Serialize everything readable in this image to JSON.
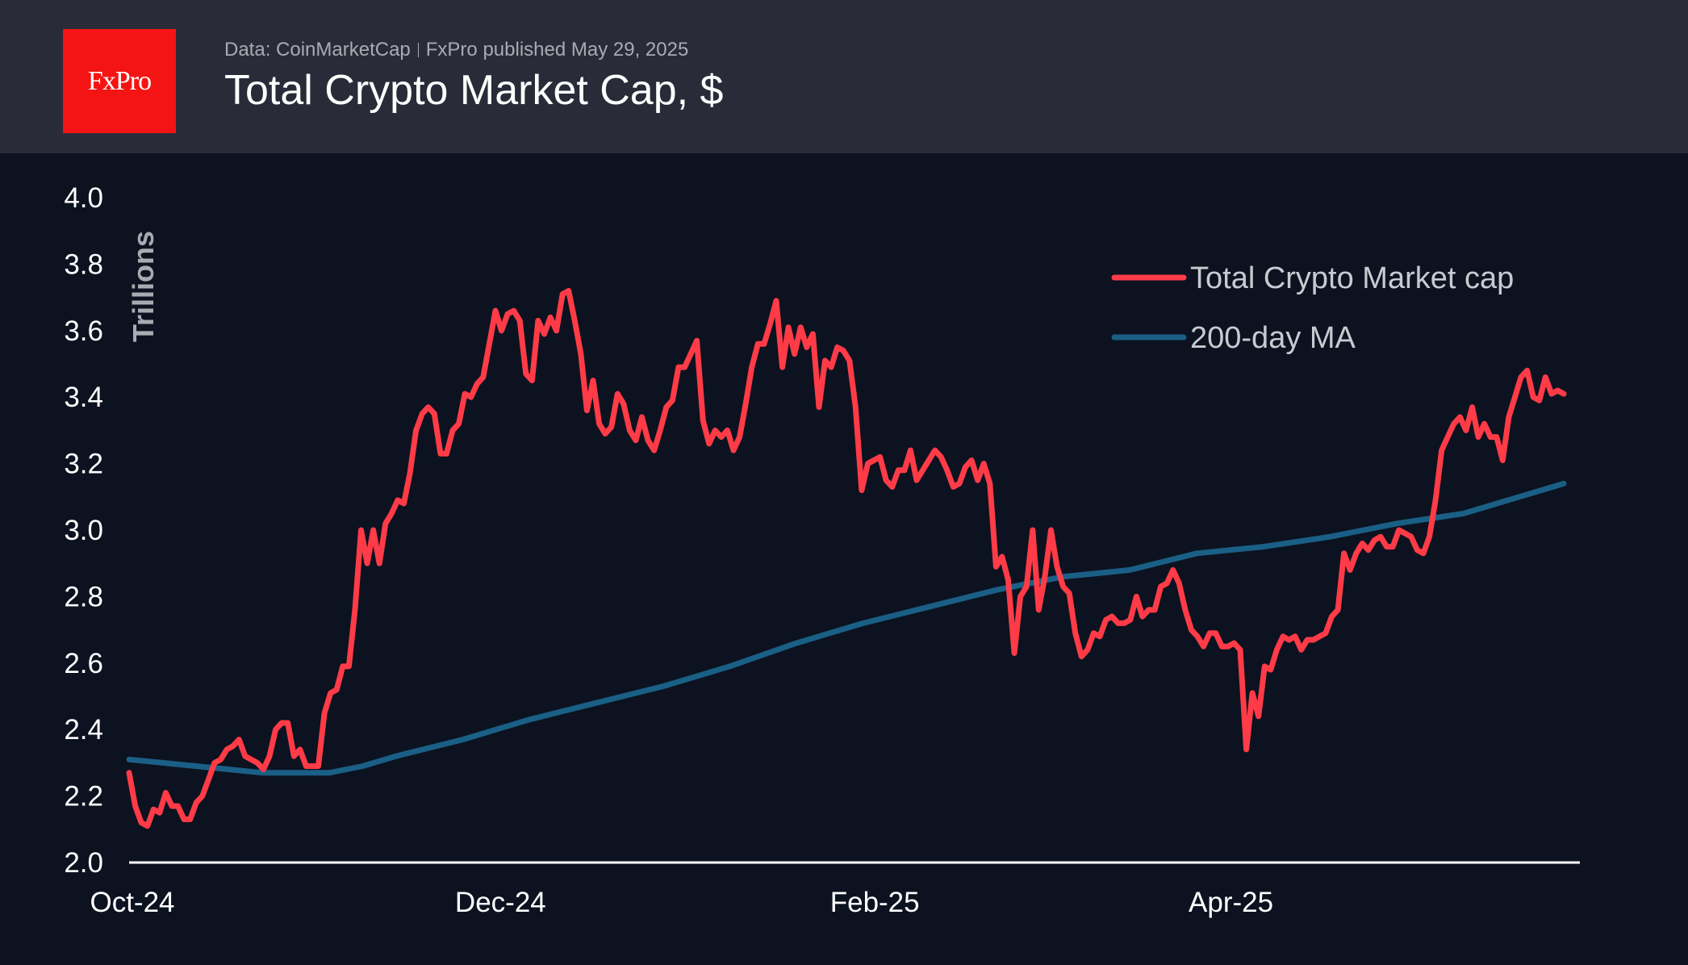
{
  "header": {
    "logo_text": "FxPro",
    "source": "Data: CoinMarketCap",
    "publisher": "FxPro published May 29, 2025",
    "title": "Total Crypto Market Cap, $"
  },
  "colors": {
    "header_bg": "#292c38",
    "plot_bg": "#0c1220",
    "logo": "#f51414",
    "market_cap": "#ff3b47",
    "ma": "#1a5f85"
  },
  "chart_data": {
    "type": "line",
    "title": "Total Crypto Market Cap, $",
    "ylabel": "Trillions",
    "xlabel": "",
    "ylim": [
      2.0,
      4.0
    ],
    "x_range": [
      "2024-10-01",
      "2025-05-28"
    ],
    "yticks": [
      "2.0",
      "2.2",
      "2.4",
      "2.6",
      "2.8",
      "3.0",
      "3.2",
      "3.4",
      "3.6",
      "3.8",
      "4.0"
    ],
    "xticks": [
      {
        "label": "Oct-24",
        "date": "2024-10-01"
      },
      {
        "label": "Dec-24",
        "date": "2024-12-01"
      },
      {
        "label": "Feb-25",
        "date": "2025-02-01"
      },
      {
        "label": "Apr-25",
        "date": "2025-04-01"
      }
    ],
    "grid": false,
    "legend_position": "top-right",
    "series": [
      {
        "name": "Total Crypto Market cap",
        "color": "#ff3b47",
        "values": [
          2.27,
          2.17,
          2.12,
          2.11,
          2.16,
          2.15,
          2.21,
          2.17,
          2.17,
          2.13,
          2.13,
          2.18,
          2.2,
          2.25,
          2.3,
          2.31,
          2.34,
          2.35,
          2.37,
          2.32,
          2.31,
          2.3,
          2.28,
          2.32,
          2.4,
          2.42,
          2.42,
          2.32,
          2.34,
          2.29,
          2.29,
          2.29,
          2.45,
          2.51,
          2.52,
          2.59,
          2.59,
          2.76,
          3.0,
          2.9,
          3.0,
          2.9,
          3.02,
          3.05,
          3.09,
          3.08,
          3.17,
          3.3,
          3.35,
          3.37,
          3.35,
          3.23,
          3.23,
          3.3,
          3.32,
          3.41,
          3.4,
          3.44,
          3.46,
          3.56,
          3.66,
          3.6,
          3.65,
          3.66,
          3.63,
          3.47,
          3.45,
          3.63,
          3.59,
          3.64,
          3.6,
          3.71,
          3.72,
          3.63,
          3.53,
          3.36,
          3.45,
          3.32,
          3.29,
          3.31,
          3.41,
          3.38,
          3.3,
          3.27,
          3.34,
          3.27,
          3.24,
          3.3,
          3.37,
          3.39,
          3.49,
          3.49,
          3.53,
          3.57,
          3.33,
          3.26,
          3.3,
          3.28,
          3.3,
          3.24,
          3.28,
          3.38,
          3.49,
          3.56,
          3.56,
          3.62,
          3.69,
          3.49,
          3.61,
          3.53,
          3.61,
          3.55,
          3.59,
          3.37,
          3.51,
          3.49,
          3.55,
          3.54,
          3.51,
          3.37,
          3.12,
          3.2,
          3.21,
          3.22,
          3.15,
          3.13,
          3.18,
          3.18,
          3.24,
          3.15,
          3.18,
          3.21,
          3.24,
          3.22,
          3.18,
          3.13,
          3.14,
          3.19,
          3.21,
          3.15,
          3.2,
          3.14,
          2.89,
          2.92,
          2.85,
          2.63,
          2.8,
          2.83,
          3.0,
          2.76,
          2.86,
          3.0,
          2.89,
          2.83,
          2.81,
          2.69,
          2.62,
          2.64,
          2.69,
          2.68,
          2.73,
          2.74,
          2.72,
          2.72,
          2.73,
          2.8,
          2.74,
          2.76,
          2.76,
          2.83,
          2.84,
          2.88,
          2.84,
          2.76,
          2.7,
          2.68,
          2.65,
          2.69,
          2.69,
          2.65,
          2.65,
          2.66,
          2.64,
          2.34,
          2.51,
          2.44,
          2.59,
          2.58,
          2.64,
          2.68,
          2.67,
          2.68,
          2.64,
          2.67,
          2.67,
          2.68,
          2.69,
          2.74,
          2.76,
          2.93,
          2.88,
          2.93,
          2.96,
          2.94,
          2.97,
          2.98,
          2.95,
          2.95,
          3.0,
          2.99,
          2.98,
          2.94,
          2.93,
          2.98,
          3.09,
          3.24,
          3.28,
          3.32,
          3.34,
          3.3,
          3.37,
          3.28,
          3.32,
          3.28,
          3.28,
          3.21,
          3.34,
          3.4,
          3.46,
          3.48,
          3.4,
          3.39,
          3.46,
          3.41,
          3.42,
          3.41
        ]
      },
      {
        "name": "200-day MA",
        "color": "#1a5f85",
        "values": [
          2.31,
          2.3,
          2.29,
          2.28,
          2.27,
          2.27,
          2.27,
          2.29,
          2.32,
          2.345,
          2.37,
          2.4,
          2.43,
          2.455,
          2.48,
          2.505,
          2.53,
          2.56,
          2.59,
          2.625,
          2.66,
          2.69,
          2.72,
          2.745,
          2.77,
          2.795,
          2.82,
          2.84,
          2.86,
          2.87,
          2.88,
          2.905,
          2.93,
          2.94,
          2.95,
          2.965,
          2.98,
          3.0,
          3.02,
          3.035,
          3.05,
          3.08,
          3.11,
          3.14
        ]
      }
    ]
  }
}
